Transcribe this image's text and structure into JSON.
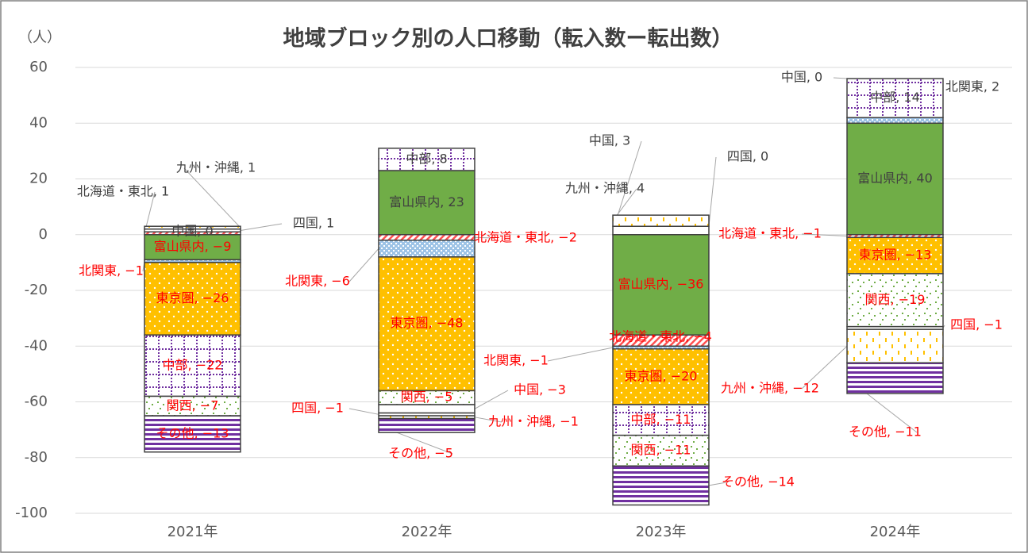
{
  "chart_data": {
    "type": "stacked_bar",
    "title": "地域ブロック別の人口移動（転入数ー転出数）",
    "y_label": "（人）",
    "categories": [
      "2021年",
      "2022年",
      "2023年",
      "2024年"
    ],
    "ylim": [
      -100,
      60
    ],
    "yticks": [
      -100,
      -80,
      -60,
      -40,
      -20,
      0,
      20,
      40,
      60
    ],
    "grid": true,
    "series": [
      {
        "name": "富山県内",
        "color": "#70ad47",
        "pattern": "solid",
        "values": [
          -9,
          23,
          -36,
          40
        ],
        "value_labels": [
          "富山県内, −9",
          "富山県内, 23",
          "富山県内, −36",
          "富山県内, 40"
        ]
      },
      {
        "name": "北海道・東北",
        "color": "#ff5050",
        "pattern": "diagonal",
        "values": [
          1,
          -2,
          -4,
          -1
        ],
        "value_labels": [
          "北海道・東北, 1",
          "北海道・東北, −2",
          "北海道・東北, −4",
          "北海道・東北, −1"
        ]
      },
      {
        "name": "北関東",
        "color": "#9dc3e6",
        "pattern": "checker",
        "values": [
          -1,
          -6,
          -1,
          2
        ],
        "value_labels": [
          "北関東, −1",
          "北関東, −6",
          "北関東, −1",
          "北関東, 2"
        ]
      },
      {
        "name": "東京圏",
        "color": "#ffc000",
        "pattern": "dots",
        "values": [
          -26,
          -48,
          -20,
          -13
        ],
        "value_labels": [
          "東京圏, −26",
          "東京圏, −48",
          "東京圏, −20",
          "東京圏, −13"
        ]
      },
      {
        "name": "中部",
        "color": "#7030a0",
        "pattern": "dotgrid",
        "values": [
          -22,
          8,
          -11,
          14
        ],
        "value_labels": [
          "中部, −22",
          "中部, 8",
          "中部, −11",
          "中部, 14"
        ]
      },
      {
        "name": "関西",
        "color": "#70ad47",
        "pattern": "specks",
        "values": [
          -7,
          -5,
          -11,
          -19
        ],
        "value_labels": [
          "関西, −7",
          "関西, −5",
          "関西, −11",
          "関西, −19"
        ]
      },
      {
        "name": "中国",
        "color": "#ffffff",
        "pattern": "solid",
        "values": [
          0,
          -3,
          3,
          0
        ],
        "value_labels": [
          "中国, 0",
          "中国, −3",
          "中国, 3",
          "中国, 0"
        ]
      },
      {
        "name": "四国",
        "color": "#ffffff",
        "pattern": "solid",
        "values": [
          1,
          -1,
          0,
          -1
        ],
        "value_labels": [
          "四国, 1",
          "四国, −1",
          "四国, 0",
          "四国, −1"
        ]
      },
      {
        "name": "九州・沖縄",
        "color": "#ffc000",
        "pattern": "dashes",
        "values": [
          1,
          -1,
          4,
          -12
        ],
        "value_labels": [
          "九州・沖縄, 1",
          "九州・沖縄, −1",
          "九州・沖縄, 4",
          "九州・沖縄, −12"
        ]
      },
      {
        "name": "その他",
        "color": "#7030a0",
        "pattern": "hstripes",
        "values": [
          -13,
          -5,
          -14,
          -11
        ],
        "value_labels": [
          "その他, −13",
          "その他, −5",
          "その他, −14",
          "その他, −11"
        ]
      }
    ]
  }
}
